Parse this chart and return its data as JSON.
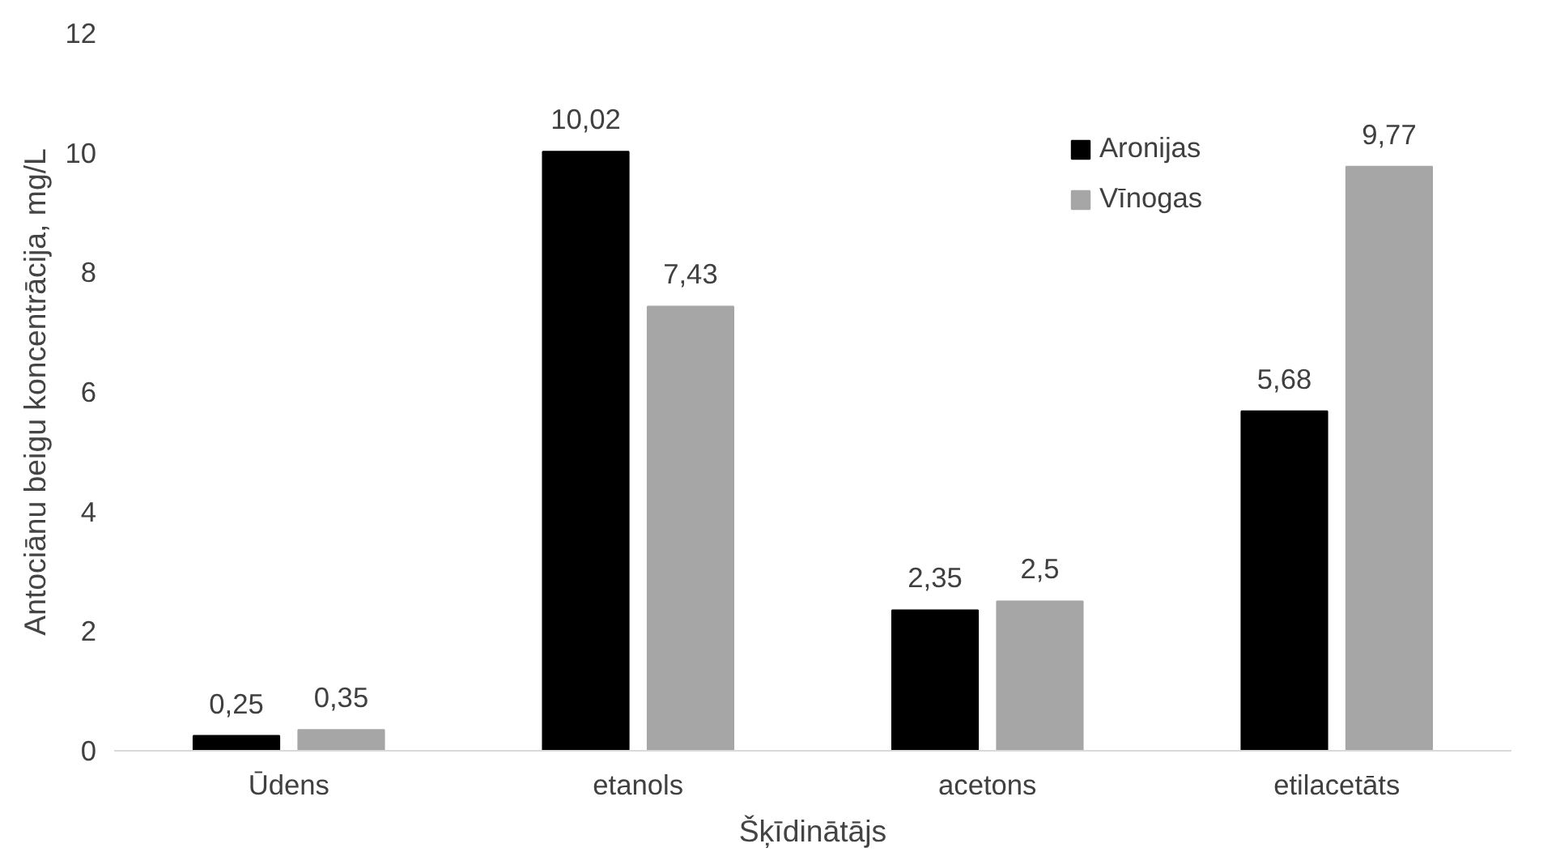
{
  "chart_data": {
    "type": "bar",
    "xlabel": "Šķīdinātājs",
    "ylabel": "Antociānu beigu koncentrācija, mg/L",
    "categories": [
      "Ūdens",
      "etanols",
      "acetons",
      "etilacetāts"
    ],
    "series": [
      {
        "name": "Aronijas",
        "color": "#000000",
        "values": [
          0.25,
          10.02,
          2.35,
          5.68
        ],
        "value_labels": [
          "0,25",
          "10,02",
          "2,35",
          "5,68"
        ]
      },
      {
        "name": "Vīnogas",
        "color": "#a6a6a6",
        "values": [
          0.35,
          7.43,
          2.5,
          9.77
        ],
        "value_labels": [
          "0,35",
          "7,43",
          "2,5",
          "9,77"
        ]
      }
    ],
    "ylim": [
      0,
      12
    ],
    "yticks": [
      0,
      2,
      4,
      6,
      8,
      10,
      12
    ],
    "grid": false,
    "legend": "top right"
  }
}
